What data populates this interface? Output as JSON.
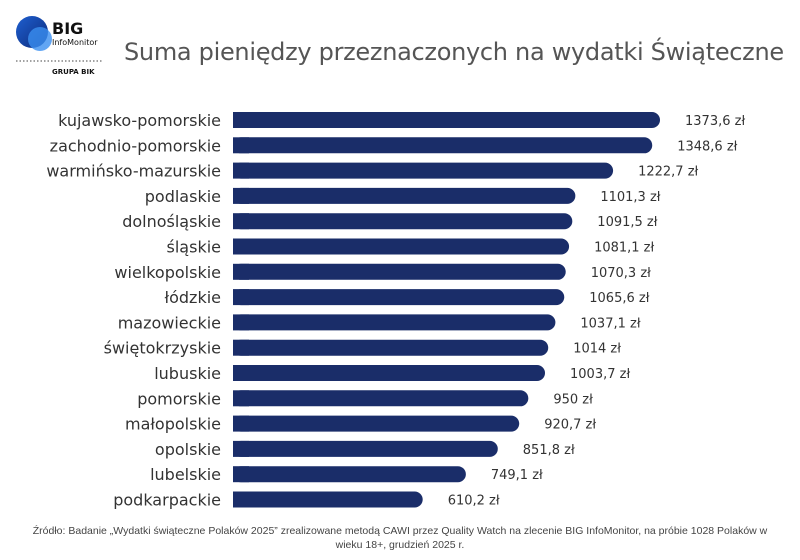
{
  "logo": {
    "brand": "BIG",
    "sub": "InfoMonitor",
    "group": "GRUPA BIK"
  },
  "colors": {
    "bar": "#1a2d69",
    "label": "#333333",
    "value": "#333333"
  },
  "chart_data": {
    "type": "bar",
    "orientation": "horizontal",
    "title": "Suma pieniędzy przeznaczonych na wydatki Świąteczne",
    "categories": [
      "kujawsko-pomorskie",
      "zachodnio-pomorskie",
      "warmińsko-mazurskie",
      "podlaskie",
      "dolnośląskie",
      "śląskie",
      "wielkopolskie",
      "łódzkie",
      "mazowieckie",
      "świętokrzyskie",
      "lubuskie",
      "pomorskie",
      "małopolskie",
      "opolskie",
      "lubelskie",
      "podkarpackie"
    ],
    "values": [
      1373.6,
      1348.6,
      1222.7,
      1101.3,
      1091.5,
      1081.1,
      1070.3,
      1065.6,
      1037.1,
      1014,
      1003.7,
      950,
      920.7,
      851.8,
      749.1,
      610.2
    ],
    "value_labels": [
      "1373,6 zł",
      "1348,6 zł",
      "1222,7 zł",
      "1101,3 zł",
      "1091,5 zł",
      "1081,1 zł",
      "1070,3 zł",
      "1065,6 zł",
      "1037,1 zł",
      "1014 zł",
      "1003,7 zł",
      "950 zł",
      "920,7 zł",
      "851,8 zł",
      "749,1 zł",
      "610,2 zł"
    ],
    "xlim": [
      0,
      1373.6
    ],
    "grid": false
  },
  "footer": {
    "line1": "Źródło: Badanie „Wydatki świąteczne Polaków 2025” zrealizowane metodą CAWI przez Quality Watch na zlecenie BIG InfoMonitor, na próbie 1028 Polaków w",
    "line2": "wieku 18+, grudzień 2025 r."
  }
}
